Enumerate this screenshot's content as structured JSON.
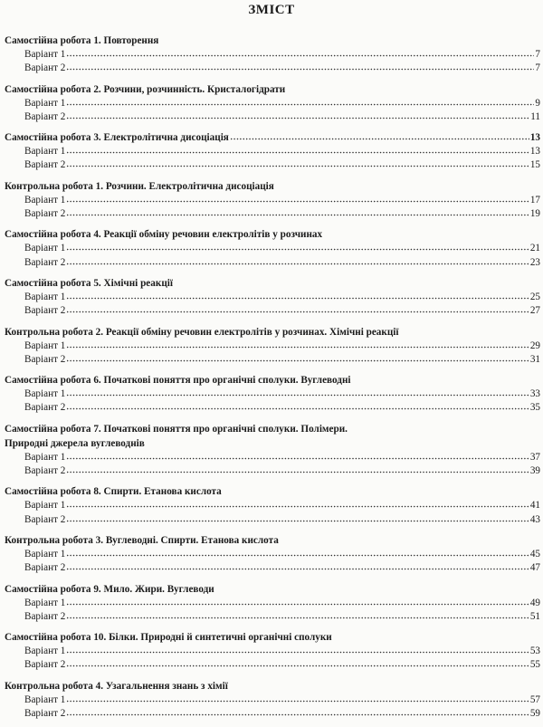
{
  "title": "ЗМІСТ",
  "sections": [
    {
      "lines": [
        "Самостійна робота 1. Повторення"
      ],
      "variants": [
        {
          "label": "Варіант 1",
          "page": "7"
        },
        {
          "label": "Варіант 2",
          "page": "7"
        }
      ]
    },
    {
      "lines": [
        "Самостійна робота 2. Розчини, розчинність. Кристалогідрати"
      ],
      "variants": [
        {
          "label": "Варіант 1",
          "page": "9"
        },
        {
          "label": "Варіант 2",
          "page": "11"
        }
      ]
    },
    {
      "lines": [
        "Самостійна робота 3. Електролітична дисоціація"
      ],
      "page": "13",
      "variants": [
        {
          "label": "Варіант 1",
          "page": "13"
        },
        {
          "label": "Варіант 2",
          "page": "15"
        }
      ]
    },
    {
      "lines": [
        "Контрольна робота 1. Розчини. Електролітична дисоціація"
      ],
      "variants": [
        {
          "label": "Варіант 1",
          "page": "17"
        },
        {
          "label": "Варіант 2",
          "page": "19"
        }
      ]
    },
    {
      "lines": [
        "Самостійна робота 4. Реакції обміну речовин електролітів у розчинах"
      ],
      "variants": [
        {
          "label": "Варіант 1",
          "page": "21"
        },
        {
          "label": "Варіант 2",
          "page": "23"
        }
      ]
    },
    {
      "lines": [
        "Самостійна робота 5. Хімічні реакції"
      ],
      "variants": [
        {
          "label": "Варіант 1",
          "page": "25"
        },
        {
          "label": "Варіант 2",
          "page": "27"
        }
      ]
    },
    {
      "lines": [
        "Контрольна робота 2. Реакції обміну речовин електролітів у розчинах. Хімічні реакції"
      ],
      "variants": [
        {
          "label": "Варіант 1",
          "page": "29"
        },
        {
          "label": "Варіант 2",
          "page": "31"
        }
      ]
    },
    {
      "lines": [
        "Самостійна робота 6. Початкові поняття про органічні сполуки. Вуглеводні"
      ],
      "variants": [
        {
          "label": "Варіант 1",
          "page": "33"
        },
        {
          "label": "Варіант 2",
          "page": "35"
        }
      ]
    },
    {
      "lines": [
        "Самостійна робота 7. Початкові поняття про органічні сполуки. Полімери.",
        "Природні джерела вуглеводнів"
      ],
      "variants": [
        {
          "label": "Варіант 1",
          "page": "37"
        },
        {
          "label": "Варіант 2",
          "page": "39"
        }
      ]
    },
    {
      "lines": [
        "Самостійна робота 8. Спирти. Етанова кислота"
      ],
      "variants": [
        {
          "label": "Варіант 1",
          "page": "41"
        },
        {
          "label": "Варіант 2",
          "page": "43"
        }
      ]
    },
    {
      "lines": [
        "Контрольна робота 3. Вуглеводні. Спирти. Етанова кислота"
      ],
      "variants": [
        {
          "label": "Варіант 1",
          "page": "45"
        },
        {
          "label": "Варіант 2",
          "page": "47"
        }
      ]
    },
    {
      "lines": [
        "Самостійна робота 9. Мило. Жири. Вуглеводи"
      ],
      "variants": [
        {
          "label": "Варіант 1",
          "page": "49"
        },
        {
          "label": "Варіант 2",
          "page": "51"
        }
      ]
    },
    {
      "lines": [
        "Самостійна робота 10. Білки. Природні й синтетичні органічні сполуки"
      ],
      "variants": [
        {
          "label": "Варіант 1",
          "page": "53"
        },
        {
          "label": "Варіант 2",
          "page": "55"
        }
      ]
    },
    {
      "lines": [
        "Контрольна робота 4. Узагальнення знань з хімії"
      ],
      "variants": [
        {
          "label": "Варіант 1",
          "page": "57"
        },
        {
          "label": "Варіант 2",
          "page": "59"
        }
      ]
    }
  ]
}
